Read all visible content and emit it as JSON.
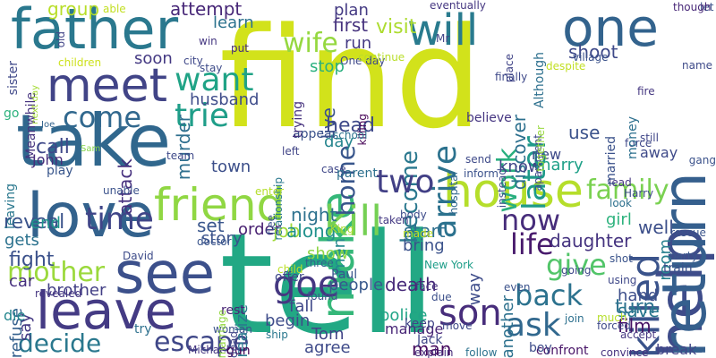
{
  "words": [
    {
      "t": "find",
      "c": "#d2e21b"
    },
    {
      "t": "tell",
      "c": "#22a884"
    },
    {
      "t": "take",
      "c": "#30678d"
    },
    {
      "t": "love",
      "c": "#33628d"
    },
    {
      "t": "see",
      "c": "#3c508b"
    },
    {
      "t": "leave",
      "c": "#443b84"
    },
    {
      "t": "father",
      "c": "#2a788e"
    },
    {
      "t": "meet",
      "c": "#414487"
    },
    {
      "t": "one",
      "c": "#33638d"
    },
    {
      "t": "will",
      "c": "#297b8e"
    },
    {
      "t": "house",
      "c": "#b5de2b"
    },
    {
      "t": "make",
      "c": "#35b779"
    },
    {
      "t": "help",
      "c": "#3e4c8a"
    },
    {
      "t": "return",
      "c": "#355f8d"
    },
    {
      "t": "kill",
      "c": "#75d054"
    },
    {
      "t": "friend",
      "c": "#90d743"
    },
    {
      "t": "come",
      "c": "#31688e"
    },
    {
      "t": "wife",
      "c": "#95d840"
    },
    {
      "t": "want",
      "c": "#20a386"
    },
    {
      "t": "trie",
      "c": "#1f9e89"
    },
    {
      "t": "home",
      "c": "#39568c"
    },
    {
      "t": "arrive",
      "c": "#2c728e"
    },
    {
      "t": "become",
      "c": "#2a788e"
    },
    {
      "t": "work",
      "c": "#29af7f"
    },
    {
      "t": "later",
      "c": "#1f9a8a"
    },
    {
      "t": "killed",
      "c": "#3a538b"
    },
    {
      "t": "family",
      "c": "#7ad151"
    },
    {
      "t": "two",
      "c": "#424086"
    },
    {
      "t": "time",
      "c": "#404588"
    },
    {
      "t": "now",
      "c": "#472d7b"
    },
    {
      "t": "life",
      "c": "#481a6c"
    },
    {
      "t": "give",
      "c": "#52c569"
    },
    {
      "t": "back",
      "c": "#2c728e"
    },
    {
      "t": "son",
      "c": "#472d7b"
    },
    {
      "t": "ask",
      "c": "#31688e"
    },
    {
      "t": "goe",
      "c": "#453781"
    },
    {
      "t": "mother",
      "c": "#9bd93c"
    },
    {
      "t": "decide",
      "c": "#2a788e"
    },
    {
      "t": "escape",
      "c": "#3f4788"
    },
    {
      "t": "group",
      "c": "#b8de29"
    },
    {
      "t": "attempt",
      "c": "#482878"
    },
    {
      "t": "learn",
      "c": "#2c728e"
    },
    {
      "t": "plan",
      "c": "#443a83"
    },
    {
      "t": "visit",
      "c": "#addc30"
    },
    {
      "t": "first",
      "c": "#46327e"
    },
    {
      "t": "discover",
      "c": "#2d708e"
    },
    {
      "t": "shoot",
      "c": "#3e4989"
    },
    {
      "t": "stop",
      "c": "#2ab07f"
    },
    {
      "t": "run",
      "c": "#443983"
    },
    {
      "t": "live",
      "c": "#3b528b"
    },
    {
      "t": "head",
      "c": "#3e4989"
    },
    {
      "t": "day",
      "c": "#25858e"
    },
    {
      "t": "murder",
      "c": "#2e6f8e"
    },
    {
      "t": "husband",
      "c": "#3e4c8a"
    },
    {
      "t": "soon",
      "c": "#443983"
    },
    {
      "t": "use",
      "c": "#3b528b"
    },
    {
      "t": "know",
      "c": "#414487"
    },
    {
      "t": "call",
      "c": "#3f4889"
    },
    {
      "t": "attack",
      "c": "#46307e"
    },
    {
      "t": "town",
      "c": "#3c4f8a"
    },
    {
      "t": "reveal",
      "c": "#3a538b"
    },
    {
      "t": "gets",
      "c": "#2c728e"
    },
    {
      "t": "end",
      "c": "#1f958b"
    },
    {
      "t": "fight",
      "c": "#3b518b"
    },
    {
      "t": "order",
      "c": "#482071"
    },
    {
      "t": "night",
      "c": "#2d718e"
    },
    {
      "t": "set",
      "c": "#39568c"
    },
    {
      "t": "story",
      "c": "#3b528b"
    },
    {
      "t": "job",
      "c": "#a0da39"
    },
    {
      "t": "along",
      "c": "#21918c"
    },
    {
      "t": "men",
      "c": "#23888e"
    },
    {
      "t": "start",
      "c": "#2e6f8e"
    },
    {
      "t": "bring",
      "c": "#3b528b"
    },
    {
      "t": "death",
      "c": "#472a7a"
    },
    {
      "t": "new",
      "c": "#3e4a89"
    },
    {
      "t": "marry",
      "c": "#1fa088"
    },
    {
      "t": "well",
      "c": "#3c4f8a"
    },
    {
      "t": "daughter",
      "c": "#463480"
    },
    {
      "t": "girl",
      "c": "#2db27d"
    },
    {
      "t": "room",
      "c": "#27808e"
    },
    {
      "t": "car",
      "c": "#46307e"
    },
    {
      "t": "brother",
      "c": "#423f85"
    },
    {
      "t": "refuse",
      "c": "#35608d"
    },
    {
      "t": "say",
      "c": "#443983"
    },
    {
      "t": "realize",
      "c": "#2a788e"
    },
    {
      "t": "fall",
      "c": "#3f4788"
    },
    {
      "t": "begin",
      "c": "#3e4c8a"
    },
    {
      "t": "police",
      "c": "#20a486"
    },
    {
      "t": "manage",
      "c": "#482677"
    },
    {
      "t": "man",
      "c": "#460b5e"
    },
    {
      "t": "Tom",
      "c": "#414487"
    },
    {
      "t": "agree",
      "c": "#3e4a89"
    },
    {
      "t": "turn",
      "c": "#2d718e"
    },
    {
      "t": "hand",
      "c": "#3d4e8a"
    },
    {
      "t": "save",
      "c": "#2a788e"
    },
    {
      "t": "film",
      "c": "#471365"
    },
    {
      "t": "break",
      "c": "#414487"
    },
    {
      "t": "away",
      "c": "#3e4a89"
    },
    {
      "t": "another",
      "c": "#2d718e"
    },
    {
      "t": "way",
      "c": "#3e4c8a"
    },
    {
      "t": "show",
      "c": "#8ed645"
    },
    {
      "t": "people",
      "c": "#38588c"
    },
    {
      "t": "die",
      "c": "#24868e"
    },
    {
      "t": "Meanwhile",
      "c": "#46327e"
    },
    {
      "t": "sister",
      "c": "#3f4889"
    },
    {
      "t": "children",
      "c": "#cde11d"
    },
    {
      "t": "go",
      "c": "#2db27d"
    },
    {
      "t": "next day",
      "c": "#a5db36"
    },
    {
      "t": "Joe",
      "c": "#33638d"
    },
    {
      "t": "John",
      "c": "#472d7b"
    },
    {
      "t": "leaving",
      "c": "#2a788e"
    },
    {
      "t": "Sam",
      "c": "#86d549"
    },
    {
      "t": "play",
      "c": "#39568c"
    },
    {
      "t": "team",
      "c": "#3e4989"
    },
    {
      "t": "unable",
      "c": "#3b528b"
    },
    {
      "t": "David",
      "c": "#3e4c8a"
    },
    {
      "t": "doctor",
      "c": "#39558c"
    },
    {
      "t": "revealed",
      "c": "#453581"
    },
    {
      "t": "try",
      "c": "#2d708e"
    },
    {
      "t": "woman",
      "c": "#3b528b"
    },
    {
      "t": "Michael",
      "c": "#453781"
    },
    {
      "t": "gun",
      "c": "#440154"
    },
    {
      "t": "rest",
      "c": "#482475"
    },
    {
      "t": "marriage",
      "c": "#93d741"
    },
    {
      "t": "dead",
      "c": "#414487"
    },
    {
      "t": "ship",
      "c": "#2a788e"
    },
    {
      "t": "three",
      "c": "#34618d"
    },
    {
      "t": "child",
      "c": "#bddf26"
    },
    {
      "t": "found",
      "c": "#3d4e8a"
    },
    {
      "t": "Paul",
      "c": "#39568c"
    },
    {
      "t": "New York",
      "c": "#1f9e89"
    },
    {
      "t": "face",
      "c": "#46327e"
    },
    {
      "t": "due",
      "c": "#3c4f8a"
    },
    {
      "t": "Jack",
      "c": "#3f4788"
    },
    {
      "t": "keep",
      "c": "#414487"
    },
    {
      "t": "move",
      "c": "#3e4a89"
    },
    {
      "t": "explain",
      "c": "#472d7b"
    },
    {
      "t": "follow",
      "c": "#2c728e"
    },
    {
      "t": "even",
      "c": "#3b528b"
    },
    {
      "t": "join",
      "c": "#2d708e"
    },
    {
      "t": "shot",
      "c": "#3a538b"
    },
    {
      "t": "using",
      "c": "#3f4889"
    },
    {
      "t": "much",
      "c": "#b5de2b"
    },
    {
      "t": "forced",
      "c": "#3e4989"
    },
    {
      "t": "accept",
      "c": "#453781"
    },
    {
      "t": "confront",
      "c": "#481467"
    },
    {
      "t": "convince",
      "c": "#46307e"
    },
    {
      "t": "boy",
      "c": "#3e4c8a"
    },
    {
      "t": "going",
      "c": "#3f4889"
    },
    {
      "t": "party",
      "c": "#39568c"
    },
    {
      "t": "rescue",
      "c": "#3a538b"
    },
    {
      "t": "gang",
      "c": "#3b528b"
    },
    {
      "t": "still",
      "c": "#404688"
    },
    {
      "t": "force",
      "c": "#3f4889"
    },
    {
      "t": "look",
      "c": "#2d708e"
    },
    {
      "t": "train",
      "c": "#3b528b"
    },
    {
      "t": "lead",
      "c": "#453781"
    },
    {
      "t": "Harry",
      "c": "#3e4c8a"
    },
    {
      "t": "fire",
      "c": "#453781"
    },
    {
      "t": "name",
      "c": "#3e4a89"
    },
    {
      "t": "let",
      "c": "#3b528b"
    },
    {
      "t": "though",
      "c": "#482878"
    },
    {
      "t": "Although",
      "c": "#2d708e"
    },
    {
      "t": "despite",
      "c": "#c2df23"
    },
    {
      "t": "village",
      "c": "#3b528b"
    },
    {
      "t": "place",
      "c": "#414487"
    },
    {
      "t": "finally",
      "c": "#3e4989"
    },
    {
      "t": "apartment",
      "c": "#3e4a89"
    },
    {
      "t": "together",
      "c": "#98d83e"
    },
    {
      "t": "married",
      "c": "#3b528b"
    },
    {
      "t": "money",
      "c": "#2d708e"
    },
    {
      "t": "instead",
      "c": "#3e4c8a"
    },
    {
      "t": "hospital",
      "c": "#31688e"
    },
    {
      "t": "believe",
      "c": "#453581"
    },
    {
      "t": "killing",
      "c": "#440154"
    },
    {
      "t": "Mr",
      "c": "#414487"
    },
    {
      "t": "eventually",
      "c": "#453781"
    },
    {
      "t": "One day",
      "c": "#3e4989"
    },
    {
      "t": "continue",
      "c": "#b8de29"
    },
    {
      "t": "school",
      "c": "#2c728e"
    },
    {
      "t": "appear",
      "c": "#3b528b"
    },
    {
      "t": "trying",
      "c": "#46327e"
    },
    {
      "t": "relationship",
      "c": "#2a788e"
    },
    {
      "t": "left",
      "c": "#414487"
    },
    {
      "t": "case",
      "c": "#3f4788"
    },
    {
      "t": "parent",
      "c": "#2d708e"
    },
    {
      "t": "send",
      "c": "#3e4a89"
    },
    {
      "t": "inform",
      "c": "#3b528b"
    },
    {
      "t": "enter",
      "c": "#b5de2b"
    },
    {
      "t": "taken",
      "c": "#443983"
    },
    {
      "t": "body",
      "c": "#3e4c8a"
    },
    {
      "t": "flee",
      "c": "#3b528b"
    },
    {
      "t": "King",
      "c": "#addc30"
    },
    {
      "t": "made",
      "c": "#c2df23"
    },
    {
      "t": "offer",
      "c": "#3e4989"
    },
    {
      "t": "stay",
      "c": "#3e4c8a"
    },
    {
      "t": "city",
      "c": "#3f4889"
    },
    {
      "t": "win",
      "c": "#453781"
    },
    {
      "t": "put",
      "c": "#472d7b"
    },
    {
      "t": "able",
      "c": "#c2df23"
    },
    {
      "t": "old",
      "c": "#414487"
    }
  ]
}
